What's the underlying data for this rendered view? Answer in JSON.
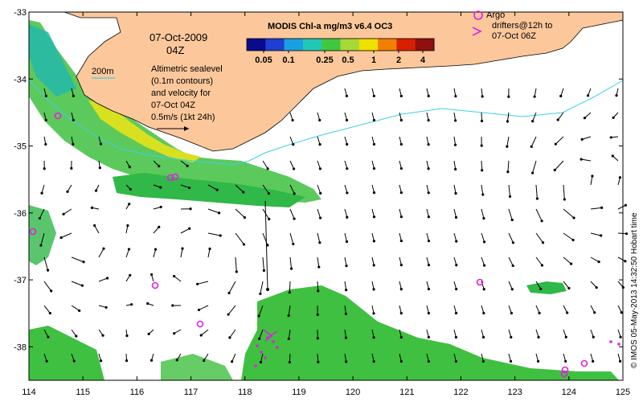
{
  "map": {
    "x_ticks": [
      "114",
      "115",
      "116",
      "117",
      "118",
      "119",
      "120",
      "121",
      "122",
      "123",
      "124",
      "125"
    ],
    "y_ticks": [
      "-33",
      "-34",
      "-35",
      "-36",
      "-37",
      "-38"
    ],
    "lon_range": [
      114,
      125
    ],
    "lat_range": [
      -38.5,
      -33
    ]
  },
  "colorbar": {
    "title": "MODIS Chl-a mg/m3 v6.4 OC3",
    "labels": [
      "0.05",
      "0.1",
      "0.25",
      "0.5",
      "1",
      "2",
      "4"
    ],
    "colors": [
      "#0a0a8c",
      "#1f3fd0",
      "#1aa0e0",
      "#20c8b8",
      "#40c840",
      "#a8d838",
      "#f0e000",
      "#f08000",
      "#d82000",
      "#901010"
    ]
  },
  "annotations": {
    "date": "07-Oct-2009",
    "time": "04Z",
    "isobath_label": "200m",
    "legend_line1": "Altimetric sealevel",
    "legend_line2": "(0.1m contours)",
    "legend_line3": "and velocity for",
    "legend_line4": "07-Oct 04Z",
    "scale_label": "0.5m/s (1kt 24h)",
    "argo_label": "Argo",
    "drifters_line1": "drifters@12h to",
    "drifters_line2": "07-Oct 06Z",
    "credit": "© IMOS 05-May-2013 14:32:50 Hobart time"
  },
  "colors": {
    "land": "#fcc89b",
    "isobath": "#3cd0e8",
    "argo": "#e020e0",
    "chl_green": "#40c040",
    "chl_yellow": "#e0e020"
  }
}
